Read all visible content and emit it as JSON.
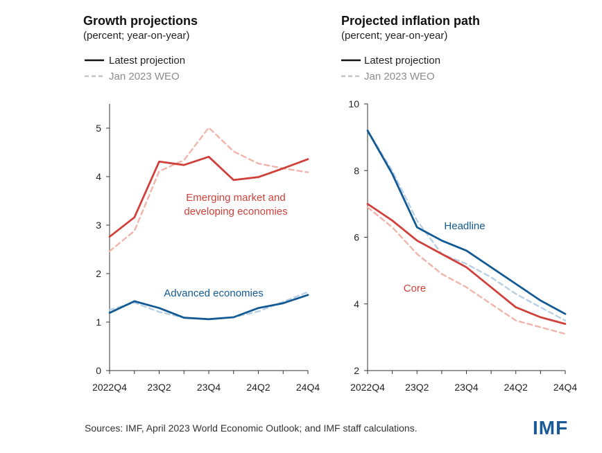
{
  "source_note": "Sources: IMF, April 2023 World Economic Outlook; and IMF staff calculations.",
  "logo_text": "IMF",
  "colors": {
    "red": "#d0403a",
    "red_dashed": "#f0b4aa",
    "blue": "#135a94",
    "blue_dashed": "#b7d0e6",
    "legend_dark": "#111111",
    "legend_dashed": "#c5c5c5",
    "axis": "#333333",
    "logo": "#1a5a96"
  },
  "chart_data": [
    {
      "type": "line",
      "title": "Growth projections",
      "subtitle": "(percent; year-on-year)",
      "legend": [
        "Latest projection",
        "Jan 2023 WEO"
      ],
      "legend_placement": "top-left",
      "x": [
        "2022Q4",
        "2023Q1",
        "2023Q2",
        "2023Q3",
        "2023Q4",
        "2024Q1",
        "2024Q2",
        "2024Q3",
        "2024Q4"
      ],
      "x_tick_labels": [
        "2022Q4",
        "23Q2",
        "23Q4",
        "24Q2",
        "24Q4"
      ],
      "y_ticks": [
        0,
        1,
        2,
        3,
        4,
        5
      ],
      "ylim": [
        0,
        5.5
      ],
      "grid": false,
      "series": [
        {
          "name": "Emerging market and developing economies",
          "projection": "Latest projection",
          "group": "em",
          "values": [
            2.76,
            3.16,
            4.31,
            4.24,
            4.41,
            3.93,
            3.99,
            4.17,
            4.36
          ]
        },
        {
          "name": "Emerging market and developing economies",
          "projection": "Jan 2023 WEO",
          "group": "em",
          "values": [
            2.46,
            2.88,
            4.11,
            4.34,
            5.01,
            4.52,
            4.27,
            4.17,
            4.09
          ]
        },
        {
          "name": "Advanced economies",
          "projection": "Latest projection",
          "group": "ae",
          "values": [
            1.19,
            1.43,
            1.29,
            1.09,
            1.06,
            1.1,
            1.29,
            1.39,
            1.56
          ]
        },
        {
          "name": "Advanced economies",
          "projection": "Jan 2023 WEO",
          "group": "ae",
          "values": [
            1.25,
            1.4,
            1.21,
            1.09,
            1.06,
            1.1,
            1.22,
            1.42,
            1.62
          ]
        }
      ],
      "annotations": [
        {
          "text": "Emerging market and",
          "group": "em"
        },
        {
          "text": "developing economies",
          "group": "em"
        },
        {
          "text": "Advanced economies",
          "group": "ae"
        }
      ]
    },
    {
      "type": "line",
      "title": "Projected inflation path",
      "subtitle": "(percent; year-on-year)",
      "legend": [
        "Latest projection",
        "Jan 2023 WEO"
      ],
      "legend_placement": "top-left",
      "x": [
        "2022Q4",
        "2023Q1",
        "2023Q2",
        "2023Q3",
        "2023Q4",
        "2024Q1",
        "2024Q2",
        "2024Q3",
        "2024Q4"
      ],
      "x_tick_labels": [
        "2022Q4",
        "23Q2",
        "23Q4",
        "24Q2",
        "24Q4"
      ],
      "y_ticks": [
        2,
        4,
        6,
        8,
        10
      ],
      "ylim": [
        2,
        10
      ],
      "grid": false,
      "series": [
        {
          "name": "Headline",
          "projection": "Latest projection",
          "group": "headline",
          "values": [
            9.2,
            7.9,
            6.3,
            5.9,
            5.6,
            5.1,
            4.6,
            4.1,
            3.7
          ]
        },
        {
          "name": "Headline",
          "projection": "Jan 2023 WEO",
          "group": "headline",
          "values": [
            9.2,
            8.0,
            6.5,
            5.5,
            5.2,
            4.8,
            4.3,
            3.9,
            3.5
          ]
        },
        {
          "name": "Core",
          "projection": "Latest projection",
          "group": "core",
          "values": [
            7.0,
            6.5,
            5.9,
            5.5,
            5.1,
            4.5,
            3.9,
            3.6,
            3.4
          ]
        },
        {
          "name": "Core",
          "projection": "Jan 2023 WEO",
          "group": "core",
          "values": [
            6.9,
            6.3,
            5.5,
            4.9,
            4.5,
            4.0,
            3.5,
            3.3,
            3.1
          ]
        }
      ],
      "annotations": [
        {
          "text": "Headline",
          "group": "headline"
        },
        {
          "text": "Core",
          "group": "core"
        }
      ]
    }
  ]
}
